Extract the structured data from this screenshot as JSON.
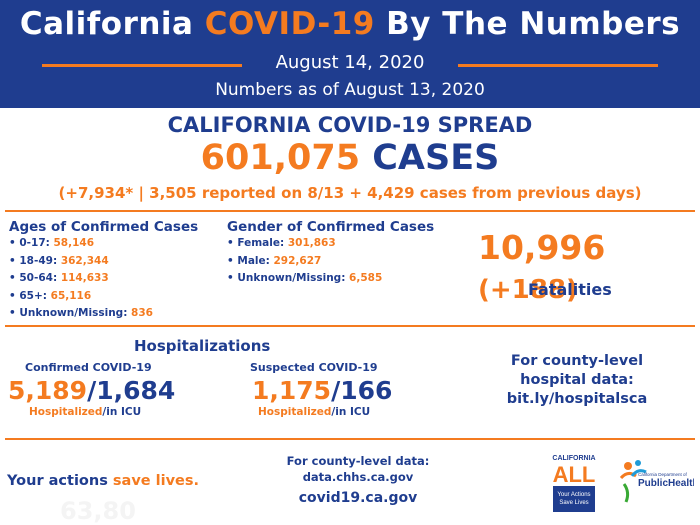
{
  "header": {
    "title_part1": "California ",
    "title_highlight": "COVID-19",
    "title_part2": " By The Numbers",
    "date": "August 14, 2020",
    "as_of": "Numbers as of August 13, 2020"
  },
  "spread": {
    "heading": "CALIFORNIA COVID-19 SPREAD",
    "cases_number": "601,075",
    "cases_label": "CASES",
    "breakdown": "(+7,934* | 3,505 reported on 8/13 + 4,429 cases from previous days)"
  },
  "ages": {
    "title": "Ages of Confirmed Cases",
    "items": [
      {
        "label": "• 0-17: ",
        "value": "58,146"
      },
      {
        "label": "• 18-49: ",
        "value": "362,344"
      },
      {
        "label": "• 50-64: ",
        "value": "114,633"
      },
      {
        "label": "• 65+: ",
        "value": "65,116"
      },
      {
        "label": "• Unknown/Missing: ",
        "value": "836"
      }
    ]
  },
  "gender": {
    "title": "Gender of Confirmed Cases",
    "items": [
      {
        "label": "• Female: ",
        "value": "301,863"
      },
      {
        "label": "• Male: ",
        "value": "292,627"
      },
      {
        "label": "• Unknown/Missing: ",
        "value": "6,585"
      }
    ]
  },
  "fatalities": {
    "number": "10,996",
    "change": "(+188)",
    "label": "Fatalities"
  },
  "hospitalizations": {
    "title": "Hospitalizations",
    "confirmed": {
      "label": "Confirmed COVID-19",
      "hospitalized": "5,189",
      "icu": "1,684",
      "cap_hosp": "Hospitalized",
      "cap_icu": "/in ICU"
    },
    "suspected": {
      "label": "Suspected COVID-19",
      "hospitalized": "1,175",
      "icu": "166",
      "cap_hosp": "Hospitalized",
      "cap_icu": "/in ICU"
    },
    "county_line1": "For county-level",
    "county_line2": "hospital data:",
    "county_link": "bit.ly/hospitalsca"
  },
  "footer": {
    "actions_part1": "Your actions ",
    "actions_part2": "save lives.",
    "ghost": "63,80",
    "data_line1": "For county-level data:",
    "data_line2": "data.chhs.ca.gov",
    "site": "covid19.ca.gov",
    "logo_all_top": "CALIFORNIA",
    "logo_all_word": "ALL",
    "logo_all_sub1": "Your Actions",
    "logo_all_sub2": "Save Lives",
    "logo_cdph_line1": "California Department of",
    "logo_cdph_line2": "PublicHealth"
  },
  "colors": {
    "navy": "#1f3d8f",
    "orange": "#f47b20"
  }
}
